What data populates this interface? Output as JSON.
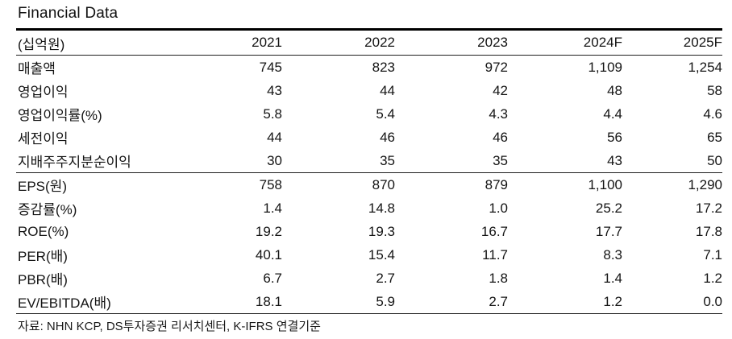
{
  "title": "Financial Data",
  "table": {
    "unit_label": "(십억원)",
    "columns": [
      "2021",
      "2022",
      "2023",
      "2024F",
      "2025F"
    ],
    "rows": [
      {
        "label": "매출액",
        "values": [
          "745",
          "823",
          "972",
          "1,109",
          "1,254"
        ]
      },
      {
        "label": "영업이익",
        "values": [
          "43",
          "44",
          "42",
          "48",
          "58"
        ]
      },
      {
        "label": "영업이익률(%)",
        "values": [
          "5.8",
          "5.4",
          "4.3",
          "4.4",
          "4.6"
        ]
      },
      {
        "label": "세전이익",
        "values": [
          "44",
          "46",
          "46",
          "56",
          "65"
        ]
      },
      {
        "label": "지배주주지분순이익",
        "values": [
          "30",
          "35",
          "35",
          "43",
          "50"
        ]
      },
      {
        "label": "EPS(원)",
        "values": [
          "758",
          "870",
          "879",
          "1,100",
          "1,290"
        ]
      },
      {
        "label": "증감률(%)",
        "values": [
          "1.4",
          "14.8",
          "1.0",
          "25.2",
          "17.2"
        ]
      },
      {
        "label": "ROE(%)",
        "values": [
          "19.2",
          "19.3",
          "16.7",
          "17.7",
          "17.8"
        ]
      },
      {
        "label": "PER(배)",
        "values": [
          "40.1",
          "15.4",
          "11.7",
          "8.3",
          "7.1"
        ]
      },
      {
        "label": "PBR(배)",
        "values": [
          "6.7",
          "2.7",
          "1.8",
          "1.4",
          "1.2"
        ]
      },
      {
        "label": "EV/EBITDA(배)",
        "values": [
          "18.1",
          "5.9",
          "2.7",
          "1.2",
          "0.0"
        ]
      }
    ]
  },
  "footer": {
    "source_note": "자료: NHN KCP, DS투자증권 리서치센터, K-IFRS 연결기준"
  },
  "colors": {
    "background": "#ffffff",
    "text": "#141414",
    "rule_heavy": "#000000",
    "rule_light": "#1f1f1f"
  }
}
